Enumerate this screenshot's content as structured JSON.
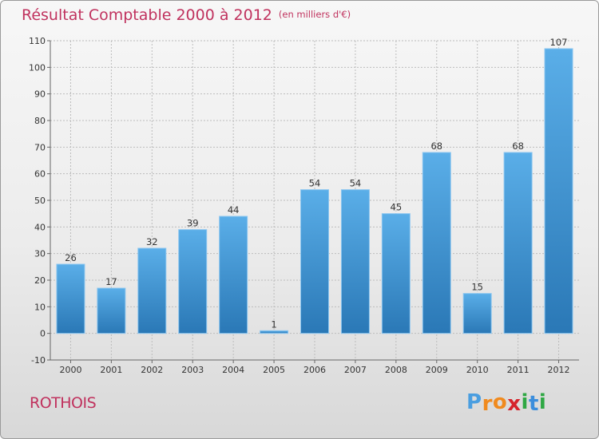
{
  "chart_data": {
    "type": "bar",
    "title": "Résultat Comptable 2000 à 2012",
    "subtitle": "(en milliers d'€)",
    "categories": [
      "2000",
      "2001",
      "2002",
      "2003",
      "2004",
      "2005",
      "2006",
      "2007",
      "2008",
      "2009",
      "2010",
      "2011",
      "2012"
    ],
    "values": [
      26,
      17,
      32,
      39,
      44,
      1,
      54,
      54,
      45,
      68,
      15,
      68,
      107
    ],
    "ylim": [
      -10,
      110
    ],
    "yticks": [
      -10,
      0,
      10,
      20,
      30,
      40,
      50,
      60,
      70,
      80,
      90,
      100,
      110
    ],
    "grid": true,
    "bar_color_top": "#5aaee8",
    "bar_color_bottom": "#2a78b6"
  },
  "footer": {
    "place": "ROTHOIS",
    "logo_letters": [
      "P",
      "r",
      "o",
      "x",
      "i",
      "t",
      "i"
    ],
    "logo_colors": [
      "#4a9ee0",
      "#f08a1e",
      "#f08a1e",
      "#d6242c",
      "#2fa844",
      "#3c8edc",
      "#2fa844"
    ]
  },
  "colors": {
    "title": "#c0325e",
    "grid": "#bcbcbc"
  }
}
